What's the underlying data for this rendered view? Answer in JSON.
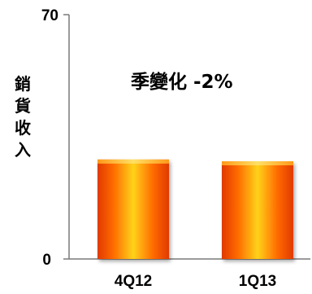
{
  "chart_data": {
    "type": "bar",
    "categories": [
      "4Q12",
      "1Q13"
    ],
    "values": [
      28.5,
      28.0
    ],
    "ylabel": "銷貨收入",
    "annotation": "季變化 -2%",
    "ylim": [
      0,
      70
    ],
    "yticks": [
      "0",
      "70"
    ],
    "grid": false,
    "legend": "none",
    "colors": {
      "bar_edge": "#e03a00",
      "bar_mid": "#ff5a00",
      "bar_highlight": "#ffd21a",
      "bar_top": "#ffcc33",
      "axis": "#7a7a7a"
    }
  }
}
